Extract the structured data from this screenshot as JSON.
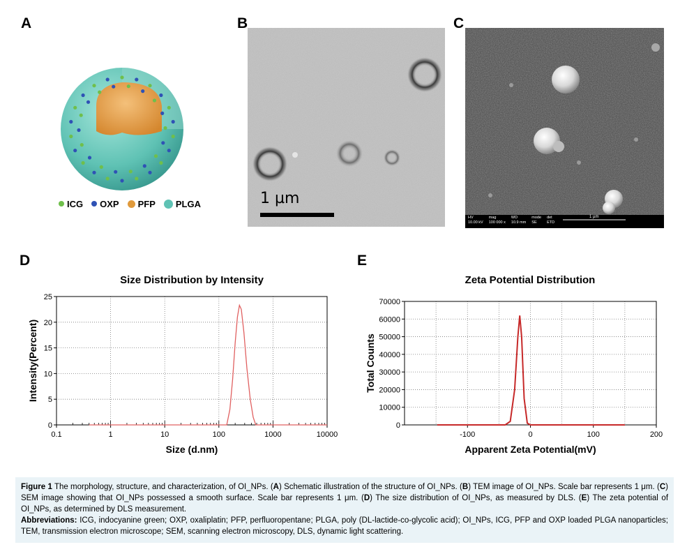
{
  "panels": {
    "a": "A",
    "b": "B",
    "c": "C",
    "d": "D",
    "e": "E"
  },
  "panel_a": {
    "legend": [
      {
        "label": "ICG",
        "color": "#6fbf4b"
      },
      {
        "label": "OXP",
        "color": "#2f52b5"
      },
      {
        "label": "PFP",
        "color": "#e09a3c"
      },
      {
        "label": "PLGA",
        "color": "#5fc2b4"
      }
    ]
  },
  "panel_b": {
    "scale_label": "1 µm"
  },
  "panel_c": {
    "info_headers": [
      "HV",
      "mag",
      "WD",
      "mode",
      "det"
    ],
    "info_values": [
      "10.00 kV",
      "100 000 x",
      "10.9 mm",
      "SE",
      "ETD"
    ],
    "scale_label": "1 µm"
  },
  "chart_data": [
    {
      "type": "line",
      "title": "Size Distribution by Intensity",
      "xlabel": "Size (d.nm)",
      "ylabel": "Intensity(Percent)",
      "xscale": "log",
      "xlim": [
        0.1,
        10000
      ],
      "ylim": [
        0,
        25
      ],
      "xticks": [
        "0.1",
        "1",
        "10",
        "100",
        "1000",
        "10000"
      ],
      "yticks": [
        "0",
        "5",
        "10",
        "15",
        "20",
        "25"
      ],
      "grid": true,
      "color": "#e06060",
      "series": [
        {
          "x": [
            0.4,
            1,
            10,
            100,
            140,
            160,
            180,
            200,
            220,
            240,
            260,
            290,
            330,
            380,
            430,
            480,
            1000,
            10000
          ],
          "y": [
            0,
            0,
            0,
            0,
            0,
            3,
            9,
            16,
            21,
            23.3,
            22.5,
            18,
            11,
            5,
            1.5,
            0,
            0,
            0
          ]
        }
      ]
    },
    {
      "type": "line",
      "title": "Zeta Potential Distribution",
      "xlabel": "Apparent Zeta Potential(mV)",
      "ylabel": "Total Counts",
      "xlim": [
        -200,
        200
      ],
      "ylim": [
        0,
        70000
      ],
      "xticks": [
        "-100",
        "0",
        "100",
        "200"
      ],
      "yticks": [
        "0",
        "10000",
        "20000",
        "30000",
        "40000",
        "50000",
        "60000",
        "70000"
      ],
      "grid": true,
      "color": "#c62828",
      "series": [
        {
          "x": [
            -148,
            -60,
            -40,
            -32,
            -25,
            -20,
            -17,
            -14,
            -10,
            -5,
            0,
            40,
            150
          ],
          "y": [
            0,
            0,
            0,
            2000,
            20000,
            50000,
            62000,
            50000,
            15000,
            1000,
            0,
            0,
            0
          ]
        }
      ]
    }
  ],
  "caption": {
    "fig_label": "Figure 1",
    "intro": " The morphology, structure, and characterization, of OI_NPs. (",
    "a": "A",
    "a_text": ") Schematic illustration of the structure of OI_NPs. (",
    "b": "B",
    "b_text": ") TEM image of OI_NPs. Scale bar represents 1 μm. (",
    "c": "C",
    "c_text": ") SEM image showing that OI_NPs possessed a smooth surface. Scale bar represents 1 μm. (",
    "d": "D",
    "d_text": ") The size distribution of OI_NPs, as measured by DLS. (",
    "e": "E",
    "e_text": ") The zeta potential of OI_NPs, as determined by DLS measurement.",
    "abbr_label": "Abbreviations:",
    "abbr_text": " ICG, indocyanine green; OXP, oxaliplatin; PFP, perfluoropentane; PLGA, poly (DL-lactide-co-glycolic acid); OI_NPs, ICG, PFP and OXP loaded PLGA nanoparticles; TEM, transmission electron microscope; SEM, scanning electron microscopy, DLS, dynamic light scattering."
  }
}
